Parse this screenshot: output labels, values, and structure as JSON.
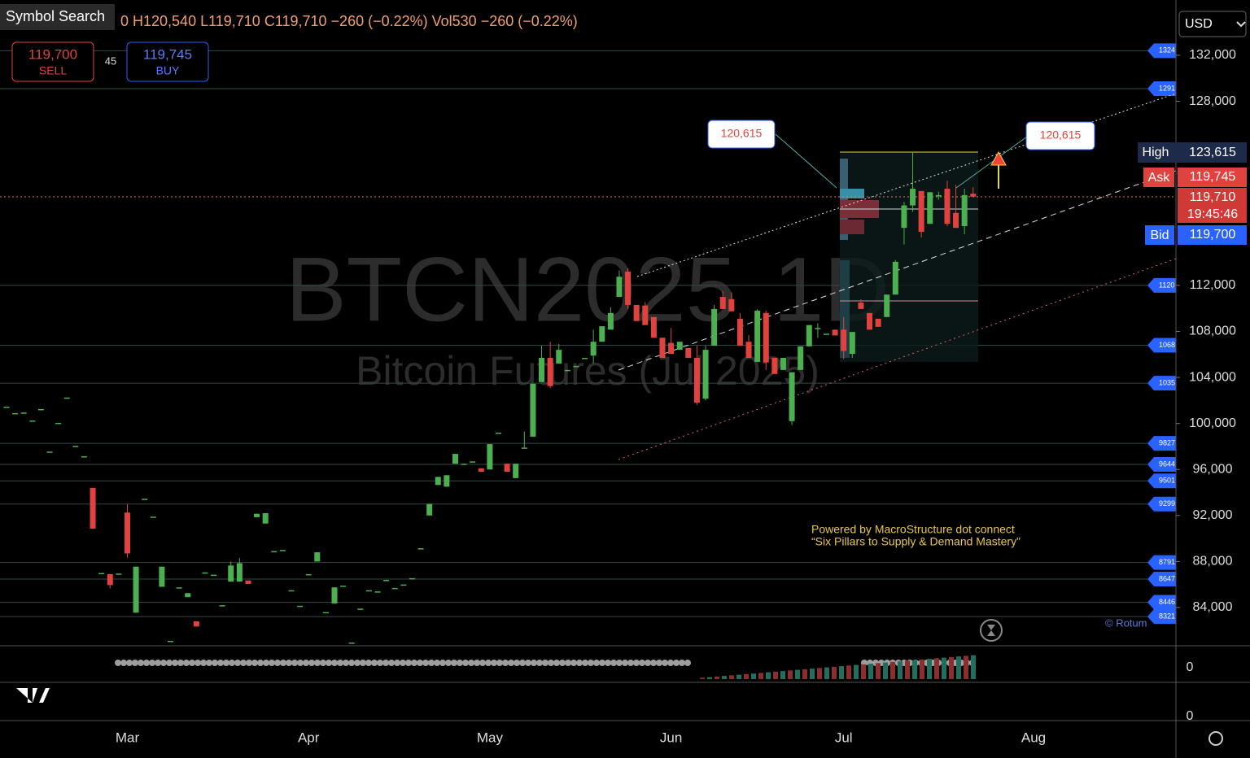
{
  "chart_data": {
    "type": "candlestick",
    "title": "BTCN2025",
    "interval": "1D",
    "subtitle": "Bitcoin Futures (Jul 2025)",
    "symbol_search": "Symbol Search",
    "ohlc_text": "0  H120,540  L119,710  C119,710  −260 (−0.22%)  Vol530  −260 (−0.22%)",
    "sell_price": "119,700",
    "sell_label": "SELL",
    "spread": "45",
    "buy_price": "119,745",
    "buy_label": "BUY",
    "currency": "USD",
    "up_color": "#4caf50",
    "down_color": "#e0433e",
    "categories": [
      null,
      null,
      null,
      null,
      null,
      null,
      null,
      null,
      null,
      null,
      null,
      null,
      null,
      null,
      "Mar",
      null,
      null,
      null,
      null,
      null,
      null,
      null,
      null,
      null,
      null,
      null,
      null,
      null,
      null,
      null,
      null,
      null,
      null,
      null,
      null,
      "Apr",
      null,
      null,
      null,
      null,
      null,
      null,
      null,
      null,
      null,
      null,
      null,
      null,
      null,
      null,
      null,
      null,
      null,
      null,
      null,
      null,
      "May",
      null,
      null,
      null,
      null,
      null,
      null,
      null,
      null,
      null,
      null,
      null,
      null,
      null,
      null,
      null,
      null,
      null,
      null,
      null,
      null,
      "Jun",
      null,
      null,
      null,
      null,
      null,
      null,
      null,
      null,
      null,
      null,
      null,
      null,
      null,
      null,
      null,
      null,
      null,
      null,
      null,
      "Jul",
      null,
      null,
      null,
      null,
      null,
      null,
      null,
      null,
      null,
      null,
      null,
      null,
      null,
      null,
      null,
      null,
      null,
      null,
      null,
      null,
      null,
      "Aug",
      null,
      null,
      null,
      null,
      null,
      null,
      null,
      null,
      null,
      null,
      null,
      null,
      null,
      null,
      null,
      null
    ],
    "open": [
      101450,
      100900,
      100950,
      100250,
      101250,
      97550,
      100050,
      102250,
      98050,
      97150,
      94400,
      87000,
      86900,
      86950,
      92250,
      83550,
      93450,
      91900,
      85800,
      81100,
      85750,
      84900,
      82800,
      87050,
      86850,
      84200,
      86250,
      86250,
      86350,
      91850,
      91300,
      88900,
      89000,
      85500,
      84150,
      86900,
      88000,
      83600,
      84350,
      85900,
      80950,
      83900,
      85500,
      85400,
      86400,
      85700,
      86000,
      86550,
      89150,
      92000,
      94650,
      94500,
      96500,
      96500,
      96700,
      96100,
      96000,
      99200,
      96500,
      95250,
      97900,
      98850,
      103600,
      105700,
      105200,
      104650,
      105000,
      105700,
      105900,
      107100,
      108150,
      111000,
      113200,
      110300,
      110250,
      109250,
      107450,
      107000,
      106400,
      106550,
      105700,
      102150,
      106750,
      111000,
      110800,
      109100,
      107100,
      105350,
      109600,
      105700,
      104650,
      100200,
      104650,
      106700,
      108300,
      107800,
      108150,
      108150,
      106050,
      110500,
      109600,
      109100,
      109250,
      111200,
      117000,
      118950,
      120200,
      117350,
      119850,
      120400,
      118300,
      117150,
      119970,
      null,
      null,
      null,
      null,
      null,
      null,
      null,
      null,
      null,
      null,
      null,
      null,
      null,
      null,
      null,
      null,
      null,
      null,
      null,
      null,
      null,
      null,
      null
    ],
    "high": [
      101450,
      100900,
      100950,
      100250,
      101250,
      97550,
      100050,
      102250,
      98050,
      97150,
      94400,
      87000,
      86900,
      86950,
      93000,
      87550,
      93450,
      91900,
      87550,
      81100,
      85750,
      85250,
      82800,
      87050,
      86850,
      84200,
      88000,
      88300,
      86350,
      92150,
      92200,
      88900,
      89000,
      85500,
      84150,
      86900,
      88800,
      83600,
      85750,
      85900,
      80950,
      83900,
      85500,
      85400,
      86400,
      85700,
      86000,
      86550,
      89150,
      93000,
      95350,
      95500,
      97350,
      96500,
      96700,
      96100,
      98200,
      99200,
      96500,
      96500,
      99300,
      103450,
      106750,
      107100,
      106900,
      104650,
      105000,
      105700,
      108150,
      108450,
      110100,
      113300,
      113500,
      110300,
      110550,
      109250,
      107450,
      108300,
      107100,
      106550,
      106750,
      106750,
      110300,
      111500,
      111400,
      109600,
      107700,
      109950,
      109800,
      105700,
      105700,
      104450,
      106700,
      108550,
      108700,
      107800,
      108150,
      109250,
      107950,
      110800,
      109600,
      109100,
      111200,
      114200,
      119250,
      123615,
      120200,
      120100,
      120150,
      121100,
      120750,
      120400,
      120540,
      null,
      null,
      null,
      null,
      null,
      null,
      null,
      null,
      null,
      null,
      null,
      null,
      null,
      null,
      null,
      null,
      null,
      null,
      null,
      null,
      null,
      null,
      null
    ],
    "low": [
      101450,
      100900,
      100950,
      100250,
      101250,
      97550,
      100050,
      102250,
      98050,
      97150,
      90850,
      87000,
      85650,
      86950,
      88350,
      83550,
      93450,
      91900,
      85800,
      81100,
      85750,
      84900,
      82350,
      87050,
      86850,
      84200,
      86250,
      86250,
      86050,
      91850,
      91300,
      88900,
      89000,
      85500,
      84150,
      86900,
      88000,
      83600,
      84350,
      85900,
      80950,
      83900,
      85500,
      85400,
      86400,
      85700,
      86000,
      86550,
      89150,
      92000,
      94650,
      94500,
      96500,
      96500,
      96700,
      95800,
      96000,
      99200,
      95800,
      95250,
      97900,
      98850,
      103600,
      103050,
      105200,
      104650,
      105000,
      105700,
      105200,
      107100,
      108150,
      111000,
      109950,
      108900,
      108550,
      107450,
      105700,
      106050,
      106400,
      105700,
      101600,
      102000,
      106750,
      109950,
      109750,
      106750,
      105700,
      105350,
      104650,
      104300,
      104650,
      99850,
      104650,
      106700,
      107450,
      107800,
      107650,
      105600,
      105700,
      109950,
      108150,
      108400,
      109250,
      111200,
      115550,
      118400,
      116150,
      117350,
      119450,
      117150,
      117000,
      116450,
      119710,
      null,
      null,
      null,
      null,
      null,
      null,
      null,
      null,
      null,
      null,
      null,
      null,
      null,
      null,
      null,
      null,
      null,
      null,
      null,
      null,
      null,
      null,
      null
    ],
    "close": [
      101450,
      100900,
      100950,
      100250,
      101250,
      97550,
      100050,
      102250,
      98050,
      97150,
      90850,
      87000,
      85950,
      86950,
      88700,
      87550,
      93450,
      91900,
      87550,
      81100,
      85750,
      85250,
      82350,
      87050,
      86850,
      84200,
      87650,
      87850,
      86050,
      92150,
      92200,
      88900,
      89000,
      85500,
      84150,
      86900,
      88800,
      83600,
      85750,
      85900,
      80950,
      83900,
      85500,
      85400,
      86400,
      85700,
      86000,
      86550,
      89150,
      93000,
      95350,
      95500,
      97350,
      96500,
      96700,
      95800,
      98200,
      99200,
      95800,
      96500,
      97900,
      103450,
      105700,
      103250,
      106400,
      104650,
      105000,
      105700,
      107100,
      108450,
      109600,
      112750,
      110300,
      108900,
      108550,
      107450,
      105700,
      106050,
      107100,
      105700,
      101800,
      106400,
      109950,
      109950,
      109750,
      106750,
      105700,
      109800,
      105300,
      104300,
      105700,
      104450,
      106700,
      108550,
      108300,
      107800,
      107650,
      106300,
      107950,
      109950,
      108150,
      108400,
      111200,
      114050,
      118950,
      120400,
      116650,
      120100,
      119850,
      117350,
      117000,
      119850,
      119710,
      null,
      null,
      null,
      null,
      null,
      null,
      null,
      null,
      null,
      null,
      null,
      null,
      null,
      null,
      null,
      null,
      null,
      null,
      null,
      null,
      null,
      null,
      null
    ],
    "ylim": [
      80745,
      136807
    ],
    "yticks": [
      {
        "value": 132000,
        "label": "132,000"
      },
      {
        "value": 128000,
        "label": "128,000"
      },
      {
        "value": 112000,
        "label": "112,000"
      },
      {
        "value": 108000,
        "label": "108,000"
      },
      {
        "value": 104000,
        "label": "104,000"
      },
      {
        "value": 100000,
        "label": "100,000"
      },
      {
        "value": 96000,
        "label": "96,000"
      },
      {
        "value": 92000,
        "label": "92,000"
      },
      {
        "value": 88000,
        "label": "88,000"
      },
      {
        "value": 84000,
        "label": "84,000"
      }
    ],
    "levels": [
      {
        "value": 132400,
        "label": "1324"
      },
      {
        "value": 129100,
        "label": "1291"
      },
      {
        "value": 112000,
        "label": "1120"
      },
      {
        "value": 106800,
        "label": "1068"
      },
      {
        "value": 103500,
        "label": "1035"
      },
      {
        "value": 98270,
        "label": "9827"
      },
      {
        "value": 96440,
        "label": "9644"
      },
      {
        "value": 95010,
        "label": "9501"
      },
      {
        "value": 92990,
        "label": "9299"
      },
      {
        "value": 87910,
        "label": "8791"
      },
      {
        "value": 86470,
        "label": "8647"
      },
      {
        "value": 84460,
        "label": "8446"
      },
      {
        "value": 83210,
        "label": "8321"
      }
    ],
    "price_tags": {
      "high_name": "High",
      "high": "123,615",
      "ask_name": "Ask",
      "ask": "119,745",
      "last": "119,710",
      "countdown": "19:45:46",
      "bid_name": "Bid",
      "bid": "119,700"
    },
    "annotations": [
      "120,615",
      "120,615",
      "Powered by MacroStructure dot connect",
      "“Six Pillars to Supply & Demand Mastery”",
      "© Rotum"
    ],
    "indicator_ticks": [
      "0",
      "0"
    ]
  }
}
